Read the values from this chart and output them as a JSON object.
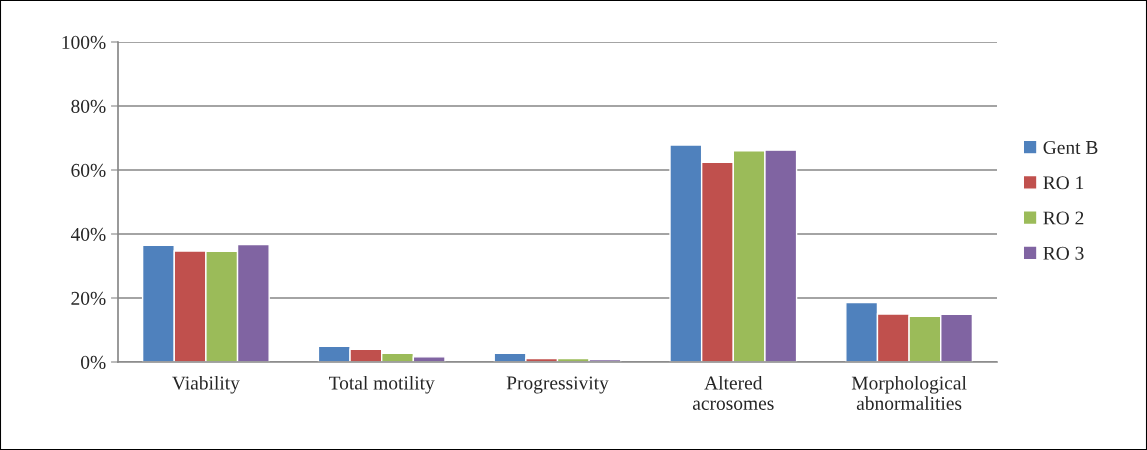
{
  "chart_data": {
    "type": "bar",
    "categories": [
      "Viability",
      "Total motility",
      "Progressivity",
      "Altered\nacrosomes",
      "Morphological\nabnormalities"
    ],
    "series": [
      {
        "name": "Gent B",
        "color": "#4f81bd",
        "values": [
          36.5,
          4.9,
          2.7,
          67.8,
          18.6
        ]
      },
      {
        "name": "RO 1",
        "color": "#c0504d",
        "values": [
          34.7,
          4.0,
          1.1,
          62.4,
          15.0
        ]
      },
      {
        "name": "RO 2",
        "color": "#9bbb59",
        "values": [
          34.6,
          2.7,
          1.1,
          66.0,
          14.3
        ]
      },
      {
        "name": "RO 3",
        "color": "#8064a2",
        "values": [
          36.7,
          1.6,
          0.8,
          66.2,
          14.9
        ]
      }
    ],
    "ylim": [
      0,
      100
    ],
    "yticks": [
      {
        "value": 0,
        "label": "0%"
      },
      {
        "value": 20,
        "label": "20%"
      },
      {
        "value": 40,
        "label": "40%"
      },
      {
        "value": 60,
        "label": "60%"
      },
      {
        "value": 80,
        "label": "80%"
      },
      {
        "value": 100,
        "label": "100%"
      }
    ],
    "grid": "y",
    "legend": "right"
  }
}
